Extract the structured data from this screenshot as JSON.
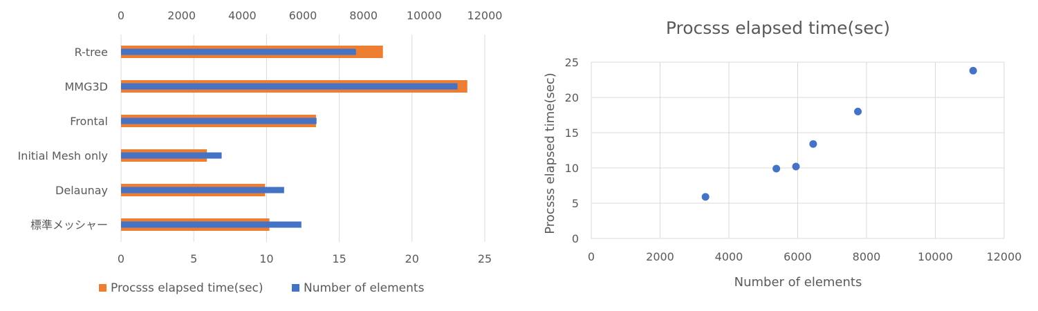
{
  "colors": {
    "time": "#ED7D31",
    "elements": "#4472C4",
    "grid": "#D9D9D9",
    "text": "#595959"
  },
  "chart_data": [
    {
      "type": "bar",
      "orientation": "horizontal",
      "categories": [
        "R-tree",
        "MMG3D",
        "Frontal",
        "Initial Mesh only",
        "Delaunay",
        "標準メッシャー"
      ],
      "series": [
        {
          "name": "Procsss elapsed time(sec)",
          "axis": "bottom",
          "values": [
            18.0,
            23.8,
            13.4,
            5.9,
            9.9,
            10.2
          ]
        },
        {
          "name": "Number of elements",
          "axis": "top",
          "values": [
            7750,
            11100,
            6450,
            3320,
            5380,
            5950
          ]
        }
      ],
      "bottom_axis": {
        "min": 0,
        "max": 25,
        "step": 5,
        "ticks": [
          "0",
          "5",
          "10",
          "15",
          "20",
          "25"
        ]
      },
      "top_axis": {
        "min": 0,
        "max": 12000,
        "step": 2000,
        "ticks": [
          "0",
          "2000",
          "4000",
          "6000",
          "8000",
          "10000",
          "12000"
        ]
      },
      "grid": true,
      "legend": "bottom",
      "legend_labels": [
        "Procsss elapsed time(sec)",
        "Number of elements"
      ]
    },
    {
      "type": "scatter",
      "title": "Procsss elapsed time(sec)",
      "xlabel": "Number of elements",
      "ylabel": "Procsss elapsed time(sec)",
      "xlim": [
        0,
        12000
      ],
      "ylim": [
        0,
        25
      ],
      "x_ticks": [
        "0",
        "2000",
        "4000",
        "6000",
        "8000",
        "10000",
        "12000"
      ],
      "y_ticks": [
        "0",
        "5",
        "10",
        "15",
        "20",
        "25"
      ],
      "grid": true,
      "points": [
        {
          "x": 3320,
          "y": 5.9
        },
        {
          "x": 5380,
          "y": 9.9
        },
        {
          "x": 5950,
          "y": 10.2
        },
        {
          "x": 6450,
          "y": 13.4
        },
        {
          "x": 7750,
          "y": 18.0
        },
        {
          "x": 11100,
          "y": 23.8
        }
      ]
    }
  ]
}
